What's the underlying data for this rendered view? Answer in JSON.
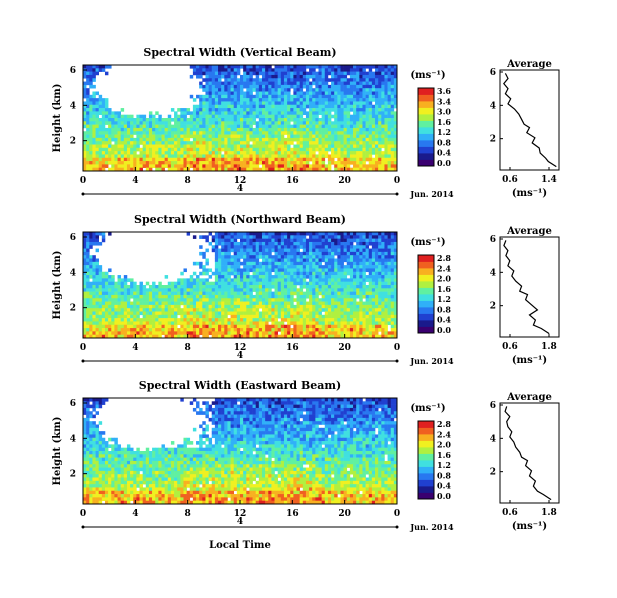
{
  "xlabel": "Local Time",
  "date_label": "Jun. 2014",
  "day_marker": "4",
  "colorbar_unit": "(ms⁻¹)",
  "colorscale": [
    "#3a0070",
    "#1a1a8c",
    "#2040d0",
    "#2878f0",
    "#30b0f8",
    "#40e0e0",
    "#60f0a0",
    "#b0f040",
    "#f0f020",
    "#f8b020",
    "#f06020",
    "#e02020"
  ],
  "chart_data": [
    {
      "type": "heatmap",
      "title": "Spectral Width (Vertical Beam)",
      "ylabel": "Height (km)",
      "x_ticks": [
        "0",
        "4",
        "8",
        "12",
        "16",
        "20",
        "0"
      ],
      "y_ticks": [
        "6",
        "4",
        "2"
      ],
      "colorbar_ticks": [
        "3.6",
        "3.4",
        "3.0",
        "1.6",
        "1.2",
        "0.8",
        "0.4",
        "0.0"
      ],
      "avg_title": "Average",
      "avg_xlabel": "(ms⁻¹)",
      "avg_x_ticks": [
        "0.6",
        "1.4"
      ],
      "avg_y_ticks": [
        "6",
        "4",
        "2"
      ],
      "avg_profile": {
        "height": [
          0.5,
          0.8,
          1.0,
          1.3,
          1.6,
          1.9,
          2.2,
          2.5,
          2.8,
          3.0,
          3.3,
          3.6,
          3.9,
          4.2,
          4.5,
          4.8,
          5.1,
          5.4,
          5.7,
          6.0
        ],
        "width": [
          1.5,
          1.35,
          1.3,
          1.2,
          1.18,
          1.05,
          1.1,
          0.95,
          1.0,
          0.9,
          0.85,
          0.8,
          0.72,
          0.6,
          0.65,
          0.55,
          0.6,
          0.52,
          0.6,
          0.55
        ]
      }
    },
    {
      "type": "heatmap",
      "title": "Spectral Width (Northward Beam)",
      "ylabel": "Height (km)",
      "x_ticks": [
        "0",
        "4",
        "8",
        "12",
        "16",
        "20",
        "0"
      ],
      "y_ticks": [
        "6",
        "4",
        "2"
      ],
      "colorbar_ticks": [
        "2.8",
        "2.4",
        "2.0",
        "1.6",
        "1.2",
        "0.8",
        "0.4",
        "0.0"
      ],
      "avg_title": "Average",
      "avg_xlabel": "(ms⁻¹)",
      "avg_x_ticks": [
        "0.6",
        "1.8"
      ],
      "avg_y_ticks": [
        "6",
        "4",
        "2"
      ],
      "avg_profile": {
        "height": [
          0.5,
          0.8,
          1.0,
          1.3,
          1.6,
          1.9,
          2.2,
          2.5,
          2.8,
          3.0,
          3.3,
          3.6,
          3.9,
          4.2,
          4.5,
          4.8,
          5.1,
          5.4,
          5.7,
          6.0
        ],
        "width": [
          1.7,
          1.5,
          1.3,
          1.35,
          1.2,
          1.4,
          1.25,
          1.1,
          1.15,
          0.95,
          1.0,
          0.85,
          0.75,
          0.8,
          0.65,
          0.7,
          0.6,
          0.65,
          0.55,
          0.6
        ]
      }
    },
    {
      "type": "heatmap",
      "title": "Spectral Width (Eastward Beam)",
      "ylabel": "Height (km)",
      "x_ticks": [
        "0",
        "4",
        "8",
        "12",
        "16",
        "20",
        "0"
      ],
      "y_ticks": [
        "6",
        "4",
        "2"
      ],
      "colorbar_ticks": [
        "2.8",
        "2.4",
        "2.0",
        "1.6",
        "1.2",
        "0.8",
        "0.4",
        "0.0"
      ],
      "avg_title": "Average",
      "avg_xlabel": "(ms⁻¹)",
      "avg_x_ticks": [
        "0.6",
        "1.8"
      ],
      "avg_y_ticks": [
        "6",
        "4",
        "2"
      ],
      "avg_profile": {
        "height": [
          0.5,
          0.8,
          1.0,
          1.3,
          1.6,
          1.9,
          2.2,
          2.5,
          2.8,
          3.0,
          3.3,
          3.6,
          3.9,
          4.2,
          4.5,
          4.8,
          5.1,
          5.4,
          5.7,
          6.0
        ],
        "width": [
          1.75,
          1.55,
          1.4,
          1.3,
          1.35,
          1.2,
          1.25,
          1.1,
          1.15,
          1.0,
          0.95,
          0.85,
          0.8,
          0.7,
          0.75,
          0.65,
          0.62,
          0.7,
          0.58,
          0.62
        ]
      }
    }
  ]
}
